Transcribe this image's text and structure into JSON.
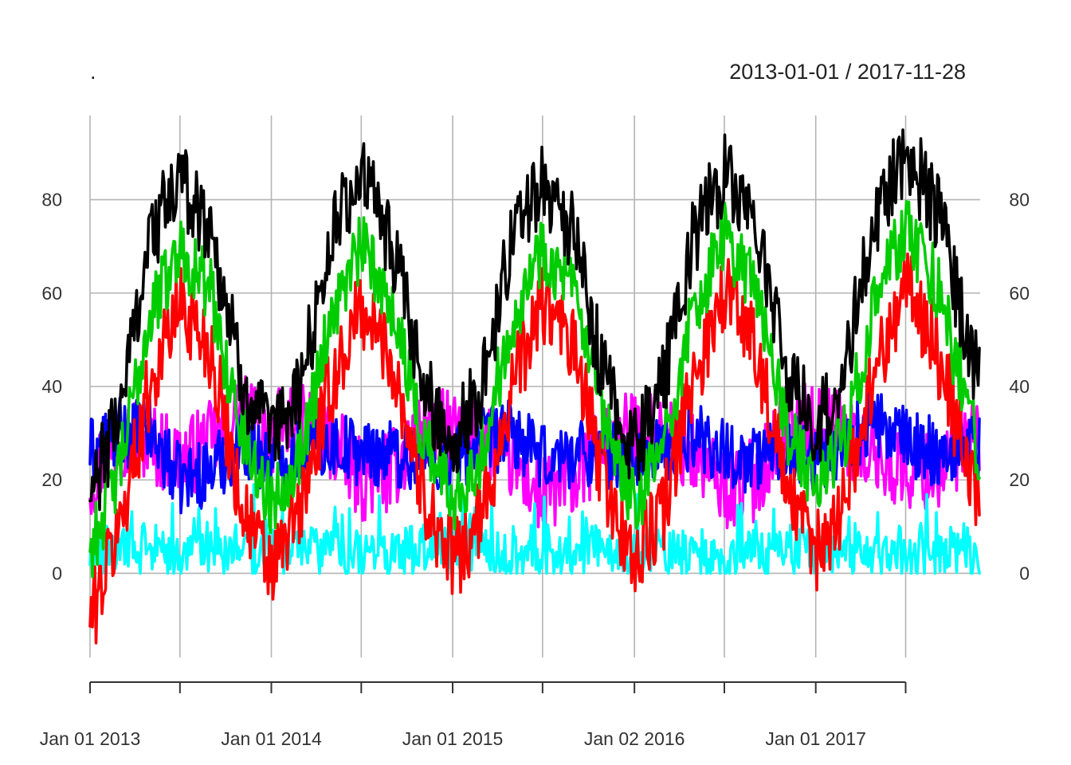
{
  "chart_data": {
    "type": "line",
    "title": ".",
    "date_range_label": "2013-01-01 / 2017-11-28",
    "x_range": [
      "2013-01-01",
      "2017-11-28"
    ],
    "ylim": [
      -18,
      98
    ],
    "y_ticks": [
      0,
      20,
      40,
      60,
      80
    ],
    "x_tick_labels": [
      "Jan 01 2013",
      "Jan 01 2014",
      "Jan 01 2015",
      "Jan 02 2016",
      "Jan 01 2017"
    ],
    "x_tick_label_dates": [
      "2013-01-01",
      "2014-01-01",
      "2015-01-01",
      "2016-01-02",
      "2017-01-01"
    ],
    "x_grid_dates": [
      "2013-01-01",
      "2013-07-01",
      "2014-01-01",
      "2014-07-01",
      "2015-01-01",
      "2015-07-01",
      "2016-01-02",
      "2016-07-01",
      "2017-01-01",
      "2017-07-01"
    ],
    "grid": true,
    "legend": "none",
    "series": [
      {
        "color": "#ff00ff",
        "values": [
          {
            "x": "2013-01-01",
            "y": 20
          },
          {
            "x": "2013-03-01",
            "y": 30
          },
          {
            "x": "2013-05-01",
            "y": 28
          },
          {
            "x": "2013-07-01",
            "y": 24
          },
          {
            "x": "2013-09-01",
            "y": 28
          },
          {
            "x": "2013-11-01",
            "y": 34
          },
          {
            "x": "2014-01-01",
            "y": 30
          },
          {
            "x": "2014-03-01",
            "y": 33
          },
          {
            "x": "2014-05-01",
            "y": 28
          },
          {
            "x": "2014-07-01",
            "y": 20
          },
          {
            "x": "2014-09-01",
            "y": 22
          },
          {
            "x": "2014-11-01",
            "y": 32
          },
          {
            "x": "2015-01-01",
            "y": 30
          },
          {
            "x": "2015-03-01",
            "y": 30
          },
          {
            "x": "2015-05-01",
            "y": 24
          },
          {
            "x": "2015-07-01",
            "y": 16
          },
          {
            "x": "2015-09-01",
            "y": 20
          },
          {
            "x": "2015-11-01",
            "y": 28
          },
          {
            "x": "2016-01-02",
            "y": 30
          },
          {
            "x": "2016-03-01",
            "y": 30
          },
          {
            "x": "2016-05-01",
            "y": 25
          },
          {
            "x": "2016-07-01",
            "y": 18
          },
          {
            "x": "2016-09-01",
            "y": 20
          },
          {
            "x": "2016-11-01",
            "y": 32
          },
          {
            "x": "2017-01-01",
            "y": 32
          },
          {
            "x": "2017-03-01",
            "y": 30
          },
          {
            "x": "2017-05-01",
            "y": 25
          },
          {
            "x": "2017-07-01",
            "y": 22
          },
          {
            "x": "2017-09-01",
            "y": 22
          },
          {
            "x": "2017-11-28",
            "y": 30
          }
        ]
      },
      {
        "color": "#0000ff",
        "values": [
          {
            "x": "2013-01-01",
            "y": 26
          },
          {
            "x": "2013-03-01",
            "y": 30
          },
          {
            "x": "2013-05-01",
            "y": 30
          },
          {
            "x": "2013-07-01",
            "y": 20
          },
          {
            "x": "2013-09-01",
            "y": 22
          },
          {
            "x": "2013-11-01",
            "y": 28
          },
          {
            "x": "2014-01-01",
            "y": 24
          },
          {
            "x": "2014-03-01",
            "y": 26
          },
          {
            "x": "2014-05-01",
            "y": 28
          },
          {
            "x": "2014-07-01",
            "y": 26
          },
          {
            "x": "2014-09-01",
            "y": 26
          },
          {
            "x": "2014-11-01",
            "y": 24
          },
          {
            "x": "2015-01-01",
            "y": 24
          },
          {
            "x": "2015-03-01",
            "y": 28
          },
          {
            "x": "2015-05-01",
            "y": 30
          },
          {
            "x": "2015-07-01",
            "y": 24
          },
          {
            "x": "2015-09-01",
            "y": 26
          },
          {
            "x": "2015-11-01",
            "y": 26
          },
          {
            "x": "2016-01-02",
            "y": 24
          },
          {
            "x": "2016-03-01",
            "y": 26
          },
          {
            "x": "2016-05-01",
            "y": 30
          },
          {
            "x": "2016-07-01",
            "y": 26
          },
          {
            "x": "2016-09-01",
            "y": 24
          },
          {
            "x": "2016-11-01",
            "y": 28
          },
          {
            "x": "2017-01-01",
            "y": 24
          },
          {
            "x": "2017-03-01",
            "y": 28
          },
          {
            "x": "2017-05-01",
            "y": 32
          },
          {
            "x": "2017-07-01",
            "y": 28
          },
          {
            "x": "2017-09-01",
            "y": 26
          },
          {
            "x": "2017-11-28",
            "y": 28
          }
        ]
      },
      {
        "color": "#00ffff",
        "values": [
          {
            "x": "2013-01-01",
            "y": 3
          },
          {
            "x": "2013-03-01",
            "y": 6
          },
          {
            "x": "2013-05-01",
            "y": 5
          },
          {
            "x": "2013-07-01",
            "y": 4
          },
          {
            "x": "2013-09-01",
            "y": 5
          },
          {
            "x": "2013-11-01",
            "y": 6
          },
          {
            "x": "2014-01-01",
            "y": 5
          },
          {
            "x": "2014-03-01",
            "y": 6
          },
          {
            "x": "2014-05-01",
            "y": 5
          },
          {
            "x": "2014-07-01",
            "y": 4
          },
          {
            "x": "2014-09-01",
            "y": 5
          },
          {
            "x": "2014-11-01",
            "y": 6
          },
          {
            "x": "2015-01-01",
            "y": 5
          },
          {
            "x": "2015-03-01",
            "y": 6
          },
          {
            "x": "2015-05-01",
            "y": 5
          },
          {
            "x": "2015-07-01",
            "y": 4
          },
          {
            "x": "2015-09-01",
            "y": 5
          },
          {
            "x": "2015-11-01",
            "y": 6
          },
          {
            "x": "2016-01-02",
            "y": 5
          },
          {
            "x": "2016-03-01",
            "y": 6
          },
          {
            "x": "2016-05-01",
            "y": 5
          },
          {
            "x": "2016-07-01",
            "y": 4
          },
          {
            "x": "2016-09-01",
            "y": 5
          },
          {
            "x": "2016-11-01",
            "y": 6
          },
          {
            "x": "2017-01-01",
            "y": 5
          },
          {
            "x": "2017-03-01",
            "y": 6
          },
          {
            "x": "2017-05-01",
            "y": 5
          },
          {
            "x": "2017-07-01",
            "y": 4
          },
          {
            "x": "2017-09-01",
            "y": 5
          },
          {
            "x": "2017-11-28",
            "y": 5
          }
        ]
      },
      {
        "color": "#ff0000",
        "values": [
          {
            "x": "2013-01-01",
            "y": -10
          },
          {
            "x": "2013-03-01",
            "y": 10
          },
          {
            "x": "2013-05-01",
            "y": 40
          },
          {
            "x": "2013-07-01",
            "y": 58
          },
          {
            "x": "2013-09-01",
            "y": 48
          },
          {
            "x": "2013-11-01",
            "y": 15
          },
          {
            "x": "2014-01-01",
            "y": 0
          },
          {
            "x": "2014-03-01",
            "y": 14
          },
          {
            "x": "2014-05-01",
            "y": 40
          },
          {
            "x": "2014-07-01",
            "y": 57
          },
          {
            "x": "2014-09-01",
            "y": 46
          },
          {
            "x": "2014-11-01",
            "y": 18
          },
          {
            "x": "2015-01-01",
            "y": 2
          },
          {
            "x": "2015-03-01",
            "y": 12
          },
          {
            "x": "2015-05-01",
            "y": 40
          },
          {
            "x": "2015-07-01",
            "y": 58
          },
          {
            "x": "2015-09-01",
            "y": 48
          },
          {
            "x": "2015-11-01",
            "y": 20
          },
          {
            "x": "2016-01-02",
            "y": 2
          },
          {
            "x": "2016-03-01",
            "y": 14
          },
          {
            "x": "2016-05-01",
            "y": 42
          },
          {
            "x": "2016-07-01",
            "y": 61
          },
          {
            "x": "2016-09-01",
            "y": 50
          },
          {
            "x": "2016-11-01",
            "y": 18
          },
          {
            "x": "2017-01-01",
            "y": 4
          },
          {
            "x": "2017-03-01",
            "y": 16
          },
          {
            "x": "2017-05-01",
            "y": 44
          },
          {
            "x": "2017-07-01",
            "y": 62
          },
          {
            "x": "2017-09-01",
            "y": 48
          },
          {
            "x": "2017-11-28",
            "y": 14
          }
        ]
      },
      {
        "color": "#00cc00",
        "values": [
          {
            "x": "2013-01-01",
            "y": 5
          },
          {
            "x": "2013-03-01",
            "y": 22
          },
          {
            "x": "2013-05-01",
            "y": 55
          },
          {
            "x": "2013-07-01",
            "y": 70
          },
          {
            "x": "2013-09-01",
            "y": 60
          },
          {
            "x": "2013-11-01",
            "y": 30
          },
          {
            "x": "2014-01-01",
            "y": 15
          },
          {
            "x": "2014-03-01",
            "y": 26
          },
          {
            "x": "2014-05-01",
            "y": 55
          },
          {
            "x": "2014-07-01",
            "y": 70
          },
          {
            "x": "2014-09-01",
            "y": 58
          },
          {
            "x": "2014-11-01",
            "y": 30
          },
          {
            "x": "2015-01-01",
            "y": 16
          },
          {
            "x": "2015-03-01",
            "y": 26
          },
          {
            "x": "2015-05-01",
            "y": 55
          },
          {
            "x": "2015-07-01",
            "y": 70
          },
          {
            "x": "2015-09-01",
            "y": 60
          },
          {
            "x": "2015-11-01",
            "y": 32
          },
          {
            "x": "2016-01-02",
            "y": 14
          },
          {
            "x": "2016-03-01",
            "y": 28
          },
          {
            "x": "2016-05-01",
            "y": 56
          },
          {
            "x": "2016-07-01",
            "y": 72
          },
          {
            "x": "2016-09-01",
            "y": 62
          },
          {
            "x": "2016-11-01",
            "y": 32
          },
          {
            "x": "2017-01-01",
            "y": 18
          },
          {
            "x": "2017-03-01",
            "y": 30
          },
          {
            "x": "2017-05-01",
            "y": 58
          },
          {
            "x": "2017-07-01",
            "y": 74
          },
          {
            "x": "2017-09-01",
            "y": 62
          },
          {
            "x": "2017-11-28",
            "y": 25
          }
        ]
      },
      {
        "color": "#000000",
        "values": [
          {
            "x": "2013-01-01",
            "y": 15
          },
          {
            "x": "2013-03-01",
            "y": 35
          },
          {
            "x": "2013-05-01",
            "y": 72
          },
          {
            "x": "2013-07-01",
            "y": 84
          },
          {
            "x": "2013-09-01",
            "y": 74
          },
          {
            "x": "2013-11-01",
            "y": 42
          },
          {
            "x": "2014-01-01",
            "y": 28
          },
          {
            "x": "2014-03-01",
            "y": 40
          },
          {
            "x": "2014-05-01",
            "y": 72
          },
          {
            "x": "2014-07-01",
            "y": 86
          },
          {
            "x": "2014-09-01",
            "y": 70
          },
          {
            "x": "2014-11-01",
            "y": 40
          },
          {
            "x": "2015-01-01",
            "y": 28
          },
          {
            "x": "2015-03-01",
            "y": 40
          },
          {
            "x": "2015-05-01",
            "y": 72
          },
          {
            "x": "2015-07-01",
            "y": 85
          },
          {
            "x": "2015-09-01",
            "y": 72
          },
          {
            "x": "2015-11-01",
            "y": 42
          },
          {
            "x": "2016-01-02",
            "y": 26
          },
          {
            "x": "2016-03-01",
            "y": 42
          },
          {
            "x": "2016-05-01",
            "y": 72
          },
          {
            "x": "2016-07-01",
            "y": 86
          },
          {
            "x": "2016-09-01",
            "y": 75
          },
          {
            "x": "2016-11-01",
            "y": 44
          },
          {
            "x": "2017-01-01",
            "y": 30
          },
          {
            "x": "2017-03-01",
            "y": 44
          },
          {
            "x": "2017-05-01",
            "y": 76
          },
          {
            "x": "2017-07-01",
            "y": 90
          },
          {
            "x": "2017-09-01",
            "y": 78
          },
          {
            "x": "2017-11-28",
            "y": 40
          }
        ]
      }
    ]
  }
}
